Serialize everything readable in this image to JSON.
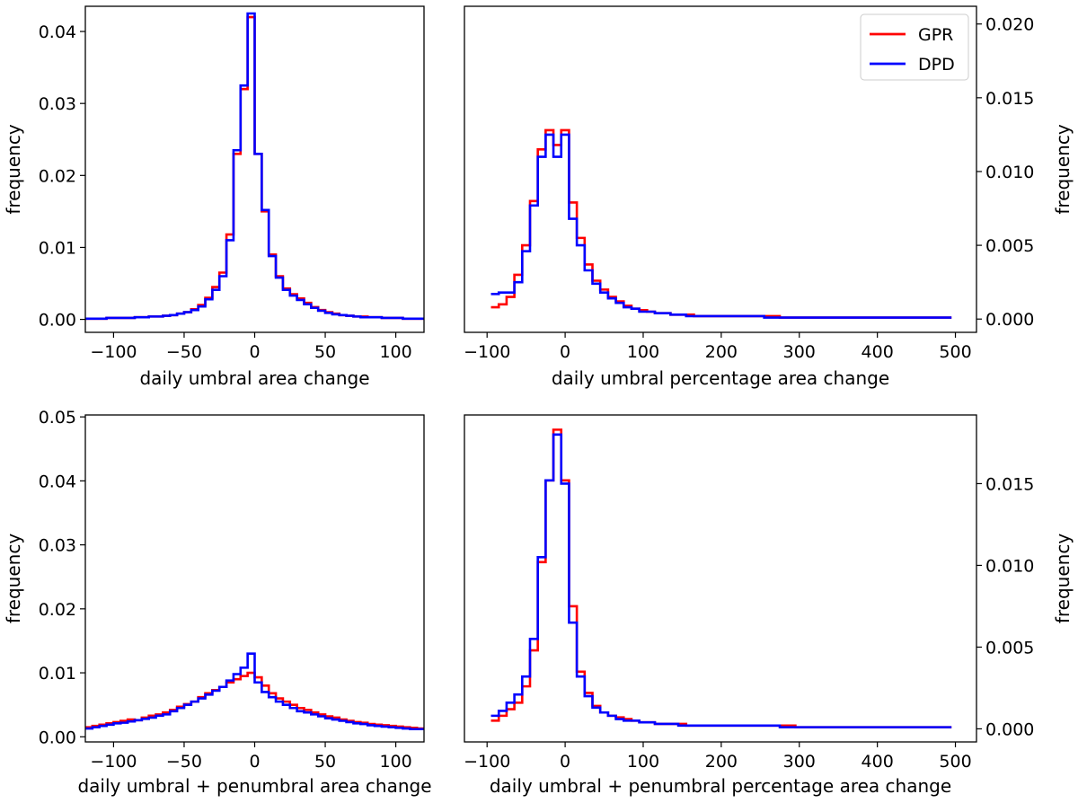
{
  "legend": {
    "placement": "top-right of top-right panel",
    "entries": [
      {
        "label": "GPR",
        "color": "#ff0000"
      },
      {
        "label": "DPD",
        "color": "#0000ff"
      }
    ]
  },
  "chart_data": [
    {
      "type": "histogram-step",
      "xlabel": "daily umbral area change",
      "ylabel": "frequency",
      "ylabel_side": "left",
      "xlim": [
        -120,
        120
      ],
      "ylim": [
        -0.0018,
        0.0435
      ],
      "xticks": [
        -100,
        -50,
        0,
        50,
        100
      ],
      "xtick_labels": [
        "−100",
        "−50",
        "0",
        "50",
        "100"
      ],
      "yticks": [
        0,
        0.01,
        0.02,
        0.03,
        0.04
      ],
      "ytick_labels": [
        "0.00",
        "0.01",
        "0.02",
        "0.03",
        "0.04"
      ],
      "bin_edges": [
        -120,
        -115,
        -110,
        -105,
        -100,
        -95,
        -90,
        -85,
        -80,
        -75,
        -70,
        -65,
        -60,
        -55,
        -50,
        -45,
        -40,
        -35,
        -30,
        -25,
        -20,
        -15,
        -10,
        -5,
        0,
        5,
        10,
        15,
        20,
        25,
        30,
        35,
        40,
        45,
        50,
        55,
        60,
        65,
        70,
        75,
        80,
        85,
        90,
        95,
        100,
        105,
        110,
        115,
        120
      ],
      "series": [
        {
          "name": "GPR",
          "color": "#ff0000",
          "values": [
            0.0001,
            0.0001,
            0.0001,
            0.0002,
            0.0002,
            0.0002,
            0.0002,
            0.0003,
            0.0003,
            0.0004,
            0.0004,
            0.0005,
            0.0006,
            0.0008,
            0.001,
            0.0014,
            0.002,
            0.003,
            0.0045,
            0.0065,
            0.0118,
            0.023,
            0.032,
            0.042,
            0.023,
            0.015,
            0.009,
            0.006,
            0.0043,
            0.0035,
            0.0029,
            0.0023,
            0.0017,
            0.0013,
            0.001,
            0.0008,
            0.0006,
            0.0005,
            0.0004,
            0.0004,
            0.0003,
            0.0003,
            0.0002,
            0.0002,
            0.0002,
            0.0001,
            0.0001,
            0.0001
          ]
        },
        {
          "name": "DPD",
          "color": "#0000ff",
          "values": [
            0.0001,
            0.0001,
            0.0001,
            0.0002,
            0.0002,
            0.0002,
            0.0002,
            0.0003,
            0.0003,
            0.0004,
            0.0004,
            0.0005,
            0.0006,
            0.0008,
            0.001,
            0.0013,
            0.0018,
            0.0028,
            0.0041,
            0.006,
            0.011,
            0.0235,
            0.0325,
            0.0425,
            0.023,
            0.0152,
            0.0088,
            0.0058,
            0.0041,
            0.0033,
            0.0027,
            0.0021,
            0.0016,
            0.0012,
            0.0009,
            0.0007,
            0.0006,
            0.0005,
            0.0004,
            0.0003,
            0.0003,
            0.0003,
            0.0002,
            0.0002,
            0.0002,
            0.0001,
            0.0001,
            0.0001
          ]
        }
      ]
    },
    {
      "type": "histogram-step",
      "xlabel": "daily umbral percentage area change",
      "ylabel": "frequency",
      "ylabel_side": "right",
      "xlim": [
        -129,
        527
      ],
      "ylim": [
        -0.0009,
        0.0212
      ],
      "xticks": [
        -100,
        0,
        100,
        200,
        300,
        400,
        500
      ],
      "xtick_labels": [
        "−100",
        "0",
        "100",
        "200",
        "300",
        "400",
        "500"
      ],
      "yticks": [
        0,
        0.005,
        0.01,
        0.015,
        0.02
      ],
      "ytick_labels": [
        "0.000",
        "0.005",
        "0.010",
        "0.015",
        "0.020"
      ],
      "bin_edges": [
        -95,
        -85,
        -75,
        -65,
        -55,
        -45,
        -35,
        -25,
        -15,
        -5,
        5,
        15,
        25,
        35,
        45,
        55,
        65,
        75,
        85,
        95,
        105,
        115,
        125,
        135,
        145,
        155,
        165,
        175,
        185,
        195,
        205,
        215,
        225,
        235,
        245,
        255,
        265,
        275,
        285,
        295,
        305,
        315,
        325,
        335,
        345,
        355,
        365,
        375,
        385,
        395,
        405,
        415,
        425,
        435,
        445,
        455,
        465,
        475,
        485,
        495
      ],
      "series": [
        {
          "name": "GPR",
          "color": "#ff0000",
          "values": [
            0.0008,
            0.001,
            0.0015,
            0.003,
            0.005,
            0.008,
            0.0115,
            0.0128,
            0.0118,
            0.0128,
            0.0079,
            0.0055,
            0.0037,
            0.0026,
            0.002,
            0.0015,
            0.0012,
            0.0009,
            0.0007,
            0.0006,
            0.0005,
            0.0004,
            0.0004,
            0.0003,
            0.0003,
            0.0003,
            0.0002,
            0.0002,
            0.0002,
            0.0002,
            0.0002,
            0.0002,
            0.0002,
            0.0002,
            0.0002,
            0.0002,
            0.0002,
            0.0001,
            0.0001,
            0.0001,
            0.0001,
            0.0001,
            0.0001,
            0.0001,
            0.0001,
            0.0001,
            0.0001,
            0.0001,
            0.0001,
            0.0001,
            0.0001,
            0.0001,
            0.0001,
            0.0001,
            0.0001,
            0.0001,
            0.0001,
            0.0001,
            0.0001
          ]
        },
        {
          "name": "DPD",
          "color": "#0000ff",
          "values": [
            0.0017,
            0.0018,
            0.0018,
            0.0025,
            0.0046,
            0.0077,
            0.011,
            0.0125,
            0.011,
            0.0125,
            0.0068,
            0.005,
            0.0033,
            0.0024,
            0.0018,
            0.0014,
            0.0011,
            0.0008,
            0.0007,
            0.0005,
            0.0005,
            0.0004,
            0.0004,
            0.0003,
            0.0003,
            0.0002,
            0.0002,
            0.0002,
            0.0002,
            0.0002,
            0.0002,
            0.0002,
            0.0002,
            0.0002,
            0.0002,
            0.0001,
            0.0001,
            0.0001,
            0.0001,
            0.0001,
            0.0001,
            0.0001,
            0.0001,
            0.0001,
            0.0001,
            0.0001,
            0.0001,
            0.0001,
            0.0001,
            0.0001,
            0.0001,
            0.0001,
            0.0001,
            0.0001,
            0.0001,
            0.0001,
            0.0001,
            0.0001,
            0.0001
          ]
        }
      ]
    },
    {
      "type": "histogram-step",
      "xlabel": "daily umbral + penumbral area change",
      "ylabel": "frequency",
      "ylabel_side": "left",
      "xlim": [
        -120,
        120
      ],
      "ylim": [
        -0.0008,
        0.0503
      ],
      "xticks": [
        -100,
        -50,
        0,
        50,
        100
      ],
      "xtick_labels": [
        "−100",
        "−50",
        "0",
        "50",
        "100"
      ],
      "yticks": [
        0,
        0.01,
        0.02,
        0.03,
        0.04,
        0.05
      ],
      "ytick_labels": [
        "0.00",
        "0.01",
        "0.02",
        "0.03",
        "0.04",
        "0.05"
      ],
      "bin_edges": [
        -120,
        -115,
        -110,
        -105,
        -100,
        -95,
        -90,
        -85,
        -80,
        -75,
        -70,
        -65,
        -60,
        -55,
        -50,
        -45,
        -40,
        -35,
        -30,
        -25,
        -20,
        -15,
        -10,
        -5,
        0,
        5,
        10,
        15,
        20,
        25,
        30,
        35,
        40,
        45,
        50,
        55,
        60,
        65,
        70,
        75,
        80,
        85,
        90,
        95,
        100,
        105,
        110,
        115,
        120
      ],
      "series": [
        {
          "name": "GPR",
          "color": "#ff0000",
          "values": [
            0.0015,
            0.0017,
            0.0019,
            0.0021,
            0.0023,
            0.0025,
            0.0027,
            0.0026,
            0.003,
            0.0033,
            0.0035,
            0.0038,
            0.0042,
            0.0047,
            0.0051,
            0.0055,
            0.0062,
            0.0068,
            0.0073,
            0.0078,
            0.0085,
            0.009,
            0.0095,
            0.01,
            0.0093,
            0.008,
            0.0068,
            0.006,
            0.0055,
            0.005,
            0.0045,
            0.0042,
            0.0038,
            0.0035,
            0.0032,
            0.003,
            0.0027,
            0.0025,
            0.0023,
            0.0022,
            0.002,
            0.0019,
            0.0018,
            0.0017,
            0.0016,
            0.0015,
            0.0014,
            0.0013
          ]
        },
        {
          "name": "DPD",
          "color": "#0000ff",
          "values": [
            0.0013,
            0.0015,
            0.0017,
            0.0019,
            0.0021,
            0.0022,
            0.0024,
            0.0026,
            0.0028,
            0.003,
            0.0033,
            0.0035,
            0.004,
            0.0045,
            0.005,
            0.0055,
            0.006,
            0.0066,
            0.0072,
            0.0078,
            0.0088,
            0.0098,
            0.0108,
            0.013,
            0.0085,
            0.007,
            0.0062,
            0.0055,
            0.005,
            0.0045,
            0.004,
            0.0038,
            0.0035,
            0.0032,
            0.0029,
            0.0027,
            0.0025,
            0.0023,
            0.0021,
            0.002,
            0.0018,
            0.0017,
            0.0016,
            0.0015,
            0.0014,
            0.0013,
            0.0012,
            0.0012
          ]
        }
      ]
    },
    {
      "type": "histogram-step",
      "xlabel": "daily umbral + penumbral percentage area change",
      "ylabel": "frequency",
      "ylabel_side": "right",
      "xlim": [
        -129,
        527
      ],
      "ylim": [
        -0.0008,
        0.0192
      ],
      "xticks": [
        -100,
        0,
        100,
        200,
        300,
        400,
        500
      ],
      "xtick_labels": [
        "−100",
        "0",
        "100",
        "200",
        "300",
        "400",
        "500"
      ],
      "yticks": [
        0,
        0.005,
        0.01,
        0.015
      ],
      "ytick_labels": [
        "0.000",
        "0.005",
        "0.010",
        "0.015"
      ],
      "bin_edges": [
        -95,
        -85,
        -75,
        -65,
        -55,
        -45,
        -35,
        -25,
        -15,
        -5,
        5,
        15,
        25,
        35,
        45,
        55,
        65,
        75,
        85,
        95,
        105,
        115,
        125,
        135,
        145,
        155,
        165,
        175,
        185,
        195,
        205,
        215,
        225,
        235,
        245,
        255,
        265,
        275,
        285,
        295,
        305,
        315,
        325,
        335,
        345,
        355,
        365,
        375,
        385,
        395,
        405,
        415,
        425,
        435,
        445,
        455,
        465,
        475,
        485,
        495
      ],
      "series": [
        {
          "name": "GPR",
          "color": "#ff0000",
          "values": [
            0.0005,
            0.0008,
            0.0012,
            0.0016,
            0.0026,
            0.0048,
            0.0102,
            0.0152,
            0.0183,
            0.0152,
            0.0075,
            0.0035,
            0.0022,
            0.0014,
            0.001,
            0.0008,
            0.0007,
            0.0006,
            0.0005,
            0.0004,
            0.0004,
            0.0003,
            0.0003,
            0.0003,
            0.0003,
            0.0002,
            0.0002,
            0.0002,
            0.0002,
            0.0002,
            0.0002,
            0.0002,
            0.0002,
            0.0002,
            0.0002,
            0.0002,
            0.0002,
            0.0002,
            0.0002,
            0.0001,
            0.0001,
            0.0001,
            0.0001,
            0.0001,
            0.0001,
            0.0001,
            0.0001,
            0.0001,
            0.0001,
            0.0001,
            0.0001,
            0.0001,
            0.0001,
            0.0001,
            0.0001,
            0.0001,
            0.0001,
            0.0001,
            0.0001
          ]
        },
        {
          "name": "DPD",
          "color": "#0000ff",
          "values": [
            0.0008,
            0.0011,
            0.0016,
            0.0021,
            0.0032,
            0.0055,
            0.0105,
            0.0152,
            0.018,
            0.015,
            0.0065,
            0.0032,
            0.002,
            0.0013,
            0.001,
            0.0008,
            0.0006,
            0.0005,
            0.0005,
            0.0004,
            0.0004,
            0.0003,
            0.0003,
            0.0003,
            0.0002,
            0.0002,
            0.0002,
            0.0002,
            0.0002,
            0.0002,
            0.0002,
            0.0002,
            0.0002,
            0.0002,
            0.0002,
            0.0002,
            0.0002,
            0.0001,
            0.0001,
            0.0001,
            0.0001,
            0.0001,
            0.0001,
            0.0001,
            0.0001,
            0.0001,
            0.0001,
            0.0001,
            0.0001,
            0.0001,
            0.0001,
            0.0001,
            0.0001,
            0.0001,
            0.0001,
            0.0001,
            0.0001,
            0.0001,
            0.0001
          ]
        }
      ]
    }
  ]
}
